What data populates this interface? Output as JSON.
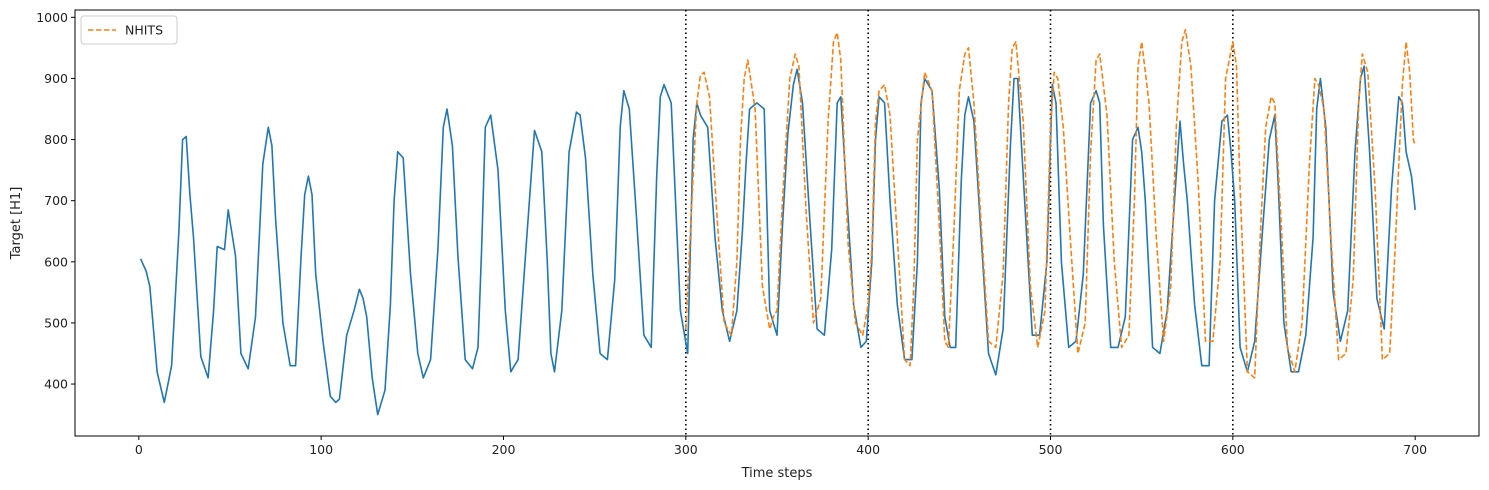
{
  "chart_data": {
    "type": "line",
    "title": "",
    "xlabel": "Time steps",
    "ylabel": "Target [H1]",
    "xlim": [
      -35,
      735
    ],
    "ylim": [
      315,
      1012
    ],
    "xticks": [
      0,
      100,
      200,
      300,
      400,
      500,
      600,
      700
    ],
    "yticks": [
      400,
      500,
      600,
      700,
      800,
      900,
      1000
    ],
    "grid": false,
    "legend_position": "top-left",
    "vlines": [
      300,
      400,
      500,
      600
    ],
    "series": [
      {
        "name": "",
        "color": "#1f77b4",
        "style": "solid",
        "x": [
          1,
          4,
          6,
          10,
          14,
          18,
          22,
          24,
          26,
          28,
          30,
          34,
          38,
          41,
          43,
          47,
          49,
          53,
          56,
          60,
          64,
          68,
          71,
          73,
          75,
          79,
          83,
          86,
          89,
          91,
          93,
          95,
          97,
          101,
          105,
          108,
          110,
          114,
          118,
          121,
          123,
          125,
          128,
          131,
          135,
          138,
          140,
          142,
          145,
          149,
          153,
          156,
          160,
          164,
          167,
          169,
          172,
          175,
          179,
          183,
          186,
          188,
          190,
          193,
          197,
          201,
          204,
          206,
          208,
          213,
          217,
          221,
          224,
          226,
          228,
          232,
          236,
          240,
          242,
          245,
          249,
          253,
          257,
          261,
          264,
          266,
          269,
          273,
          277,
          281,
          284,
          286,
          288,
          292,
          297,
          301,
          304,
          306,
          308,
          312,
          316,
          320,
          324,
          328,
          331,
          333,
          335,
          339,
          343,
          346,
          350,
          353,
          356,
          359,
          361,
          364,
          368,
          372,
          376,
          380,
          383,
          385,
          388,
          392,
          396,
          399,
          402,
          404,
          406,
          409,
          412,
          416,
          420,
          424,
          427,
          429,
          431,
          435,
          439,
          442,
          445,
          448,
          451,
          453,
          455,
          458,
          462,
          466,
          470,
          474,
          478,
          480,
          482,
          486,
          490,
          494,
          498,
          501,
          503,
          506,
          510,
          514,
          518,
          522,
          525,
          527,
          529,
          533,
          537,
          541,
          545,
          548,
          550,
          552,
          556,
          560,
          564,
          568,
          571,
          573,
          575,
          579,
          583,
          587,
          590,
          594,
          597,
          599,
          601,
          604,
          608,
          612,
          616,
          620,
          623,
          625,
          628,
          632,
          636,
          640,
          644,
          646,
          648,
          651,
          655,
          659,
          663,
          667,
          670,
          672,
          675,
          679,
          683,
          687,
          691,
          693,
          695,
          698,
          700
        ],
        "y": [
          605,
          585,
          560,
          420,
          370,
          430,
          650,
          800,
          805,
          710,
          640,
          445,
          410,
          520,
          625,
          620,
          685,
          610,
          450,
          425,
          510,
          760,
          820,
          790,
          670,
          500,
          430,
          430,
          610,
          710,
          740,
          710,
          580,
          470,
          380,
          370,
          375,
          480,
          520,
          555,
          540,
          510,
          410,
          350,
          390,
          530,
          700,
          780,
          770,
          580,
          450,
          410,
          440,
          620,
          820,
          850,
          790,
          610,
          440,
          425,
          460,
          620,
          820,
          840,
          750,
          520,
          420,
          430,
          440,
          650,
          815,
          780,
          600,
          450,
          420,
          520,
          780,
          845,
          840,
          770,
          580,
          450,
          440,
          570,
          820,
          880,
          850,
          670,
          480,
          460,
          740,
          870,
          890,
          860,
          520,
          450,
          800,
          860,
          840,
          820,
          640,
          520,
          470,
          520,
          650,
          760,
          850,
          860,
          850,
          520,
          480,
          660,
          810,
          890,
          915,
          860,
          670,
          490,
          480,
          620,
          860,
          870,
          720,
          530,
          460,
          470,
          600,
          800,
          870,
          860,
          700,
          530,
          440,
          440,
          600,
          860,
          900,
          880,
          720,
          510,
          460,
          460,
          730,
          840,
          870,
          830,
          640,
          450,
          415,
          490,
          790,
          900,
          900,
          690,
          480,
          480,
          600,
          890,
          860,
          600,
          460,
          470,
          580,
          860,
          880,
          860,
          660,
          460,
          460,
          510,
          800,
          820,
          780,
          700,
          460,
          450,
          520,
          700,
          830,
          760,
          700,
          530,
          430,
          430,
          700,
          830,
          840,
          780,
          700,
          460,
          420,
          470,
          640,
          800,
          840,
          720,
          500,
          420,
          420,
          480,
          640,
          850,
          900,
          820,
          550,
          470,
          520,
          780,
          900,
          920,
          780,
          540,
          490,
          720,
          870,
          860,
          780,
          740,
          685
        ]
      },
      {
        "name": "NHITS",
        "color": "#ff7f0e",
        "style": "dashed",
        "x": [
          300,
          303,
          306,
          308,
          310,
          313,
          317,
          321,
          325,
          328,
          330,
          332,
          334,
          338,
          342,
          346,
          348,
          350,
          353,
          357,
          360,
          362,
          366,
          370,
          374,
          378,
          381,
          383,
          385,
          389,
          393,
          397,
          400,
          402,
          404,
          406,
          409,
          412,
          416,
          420,
          423,
          425,
          427,
          431,
          435,
          439,
          442,
          444,
          447,
          450,
          453,
          455,
          458,
          462,
          466,
          470,
          474,
          477,
          479,
          481,
          485,
          489,
          493,
          497,
          500,
          502,
          504,
          507,
          511,
          515,
          519,
          522,
          525,
          527,
          531,
          535,
          539,
          543,
          546,
          548,
          550,
          554,
          558,
          562,
          566,
          569,
          572,
          574,
          577,
          581,
          585,
          589,
          593,
          596,
          598,
          600,
          602,
          604,
          608,
          612,
          615,
          618,
          621,
          623,
          626,
          630,
          634,
          638,
          642,
          645,
          647,
          650,
          654,
          658,
          662,
          666,
          669,
          671,
          674,
          678,
          682,
          686,
          689,
          691,
          693,
          695,
          697,
          699,
          700
        ],
        "y": [
          490,
          680,
          860,
          905,
          910,
          870,
          680,
          500,
          480,
          600,
          800,
          900,
          930,
          850,
          560,
          490,
          510,
          520,
          700,
          900,
          940,
          920,
          680,
          500,
          540,
          830,
          960,
          975,
          930,
          630,
          500,
          480,
          530,
          620,
          830,
          880,
          890,
          840,
          640,
          440,
          430,
          560,
          800,
          910,
          880,
          660,
          470,
          460,
          650,
          880,
          940,
          950,
          860,
          660,
          470,
          460,
          580,
          860,
          950,
          960,
          830,
          560,
          460,
          520,
          820,
          910,
          900,
          820,
          630,
          450,
          500,
          780,
          930,
          940,
          840,
          600,
          460,
          480,
          700,
          920,
          960,
          860,
          640,
          470,
          560,
          820,
          960,
          980,
          920,
          730,
          470,
          470,
          600,
          900,
          930,
          960,
          920,
          720,
          420,
          410,
          640,
          820,
          870,
          860,
          690,
          460,
          420,
          500,
          760,
          900,
          890,
          850,
          630,
          440,
          450,
          570,
          860,
          940,
          910,
          720,
          440,
          450,
          620,
          760,
          890,
          960,
          910,
          800,
          790
        ]
      }
    ]
  }
}
